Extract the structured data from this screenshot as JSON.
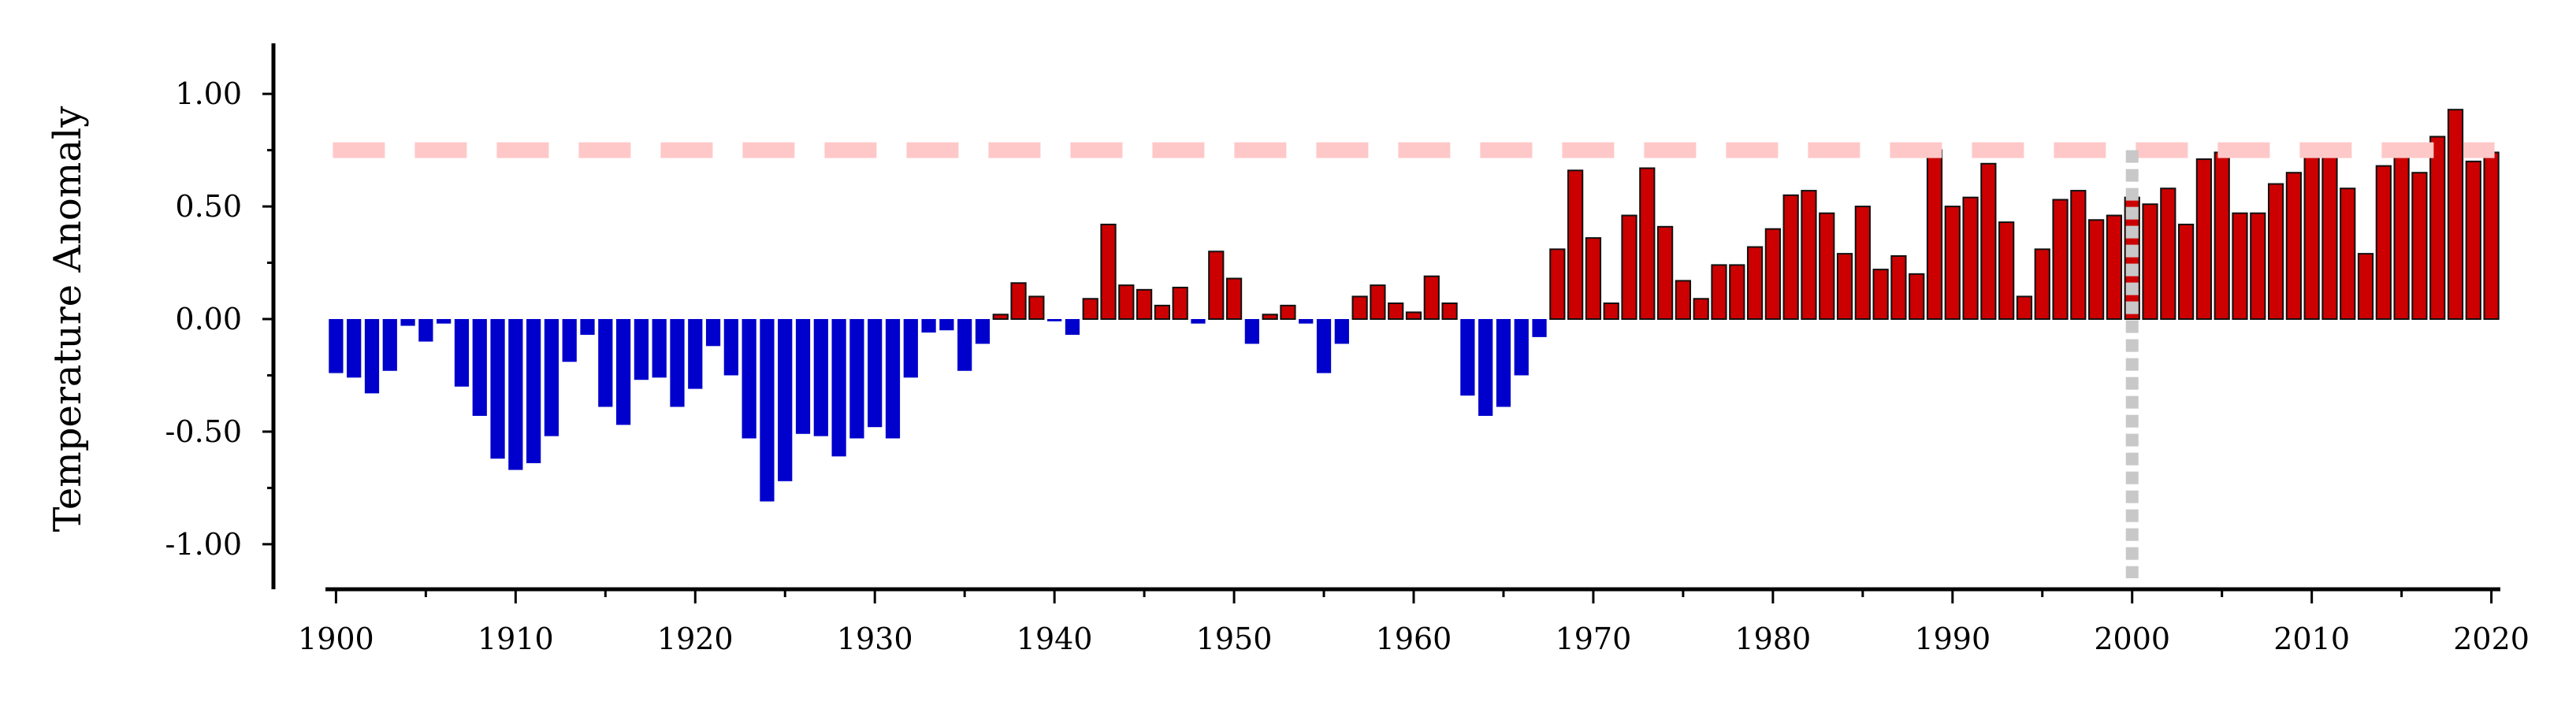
{
  "chart_data": {
    "type": "bar",
    "title": "",
    "xlabel": "",
    "ylabel": "Temperature Anomaly",
    "xlim": [
      1899.5,
      2020.5
    ],
    "ylim": [
      -1.2,
      1.2
    ],
    "x_ticks": [
      1900,
      1910,
      1920,
      1930,
      1940,
      1950,
      1960,
      1970,
      1980,
      1990,
      2000,
      2010,
      2020
    ],
    "x_tick_labels": [
      "1900",
      "1910",
      "1920",
      "1930",
      "1940",
      "1950",
      "1960",
      "1970",
      "1980",
      "1990",
      "2000",
      "2010",
      "2020"
    ],
    "y_ticks": [
      -1.0,
      -0.5,
      0.0,
      0.5,
      1.0
    ],
    "y_tick_labels": [
      "-1.00",
      "-0.50",
      "0.00",
      "0.50",
      "1.00"
    ],
    "grid": false,
    "x": [
      1900,
      1901,
      1902,
      1903,
      1904,
      1905,
      1906,
      1907,
      1908,
      1909,
      1910,
      1911,
      1912,
      1913,
      1914,
      1915,
      1916,
      1917,
      1918,
      1919,
      1920,
      1921,
      1922,
      1923,
      1924,
      1925,
      1926,
      1927,
      1928,
      1929,
      1930,
      1931,
      1932,
      1933,
      1934,
      1935,
      1936,
      1937,
      1938,
      1939,
      1940,
      1941,
      1942,
      1943,
      1944,
      1945,
      1946,
      1947,
      1948,
      1949,
      1950,
      1951,
      1952,
      1953,
      1954,
      1955,
      1956,
      1957,
      1958,
      1959,
      1960,
      1961,
      1962,
      1963,
      1964,
      1965,
      1966,
      1967,
      1968,
      1969,
      1970,
      1971,
      1972,
      1973,
      1974,
      1975,
      1976,
      1977,
      1978,
      1979,
      1980,
      1981,
      1982,
      1983,
      1984,
      1985,
      1986,
      1987,
      1988,
      1989,
      1990,
      1991,
      1992,
      1993,
      1994,
      1995,
      1996,
      1997,
      1998,
      1999,
      2000,
      2001,
      2002,
      2003,
      2004,
      2005,
      2006,
      2007,
      2008,
      2009,
      2010,
      2011,
      2012,
      2013,
      2014,
      2015,
      2016,
      2017,
      2018,
      2019,
      2020
    ],
    "values": [
      -0.24,
      -0.26,
      -0.33,
      -0.23,
      -0.03,
      -0.1,
      -0.02,
      -0.3,
      -0.43,
      -0.62,
      -0.67,
      -0.64,
      -0.52,
      -0.19,
      -0.07,
      -0.39,
      -0.47,
      -0.27,
      -0.26,
      -0.39,
      -0.31,
      -0.12,
      -0.25,
      -0.53,
      -0.81,
      -0.72,
      -0.51,
      -0.52,
      -0.61,
      -0.53,
      -0.48,
      -0.53,
      -0.26,
      -0.06,
      -0.05,
      -0.23,
      -0.11,
      0.02,
      0.16,
      0.1,
      -0.01,
      -0.07,
      0.09,
      0.42,
      0.15,
      0.13,
      0.06,
      0.14,
      -0.02,
      0.3,
      0.18,
      -0.11,
      0.02,
      0.06,
      -0.02,
      -0.24,
      -0.11,
      0.1,
      0.15,
      0.07,
      0.03,
      0.19,
      0.07,
      -0.34,
      -0.43,
      -0.39,
      -0.25,
      -0.08,
      0.31,
      0.66,
      0.36,
      0.07,
      0.46,
      0.67,
      0.41,
      0.17,
      0.09,
      0.24,
      0.24,
      0.32,
      0.4,
      0.55,
      0.57,
      0.47,
      0.29,
      0.5,
      0.22,
      0.28,
      0.2,
      0.75,
      0.5,
      0.54,
      0.69,
      0.43,
      0.1,
      0.31,
      0.53,
      0.57,
      0.44,
      0.46,
      0.54,
      0.51,
      0.58,
      0.42,
      0.71,
      0.74,
      0.47,
      0.47,
      0.6,
      0.65,
      0.78,
      0.73,
      0.58,
      0.29,
      0.68,
      0.73,
      0.65,
      0.81,
      0.93,
      0.7,
      0.74
    ],
    "colors": {
      "negative": "#0000CC",
      "positive": "#CC0000",
      "bar_edge": "#111111",
      "reference_line": "#FFC8C8",
      "marker_line": "#C8C8C8",
      "axis": "#000000"
    },
    "reference_line_value": 0.75,
    "marker_year": 2000
  }
}
